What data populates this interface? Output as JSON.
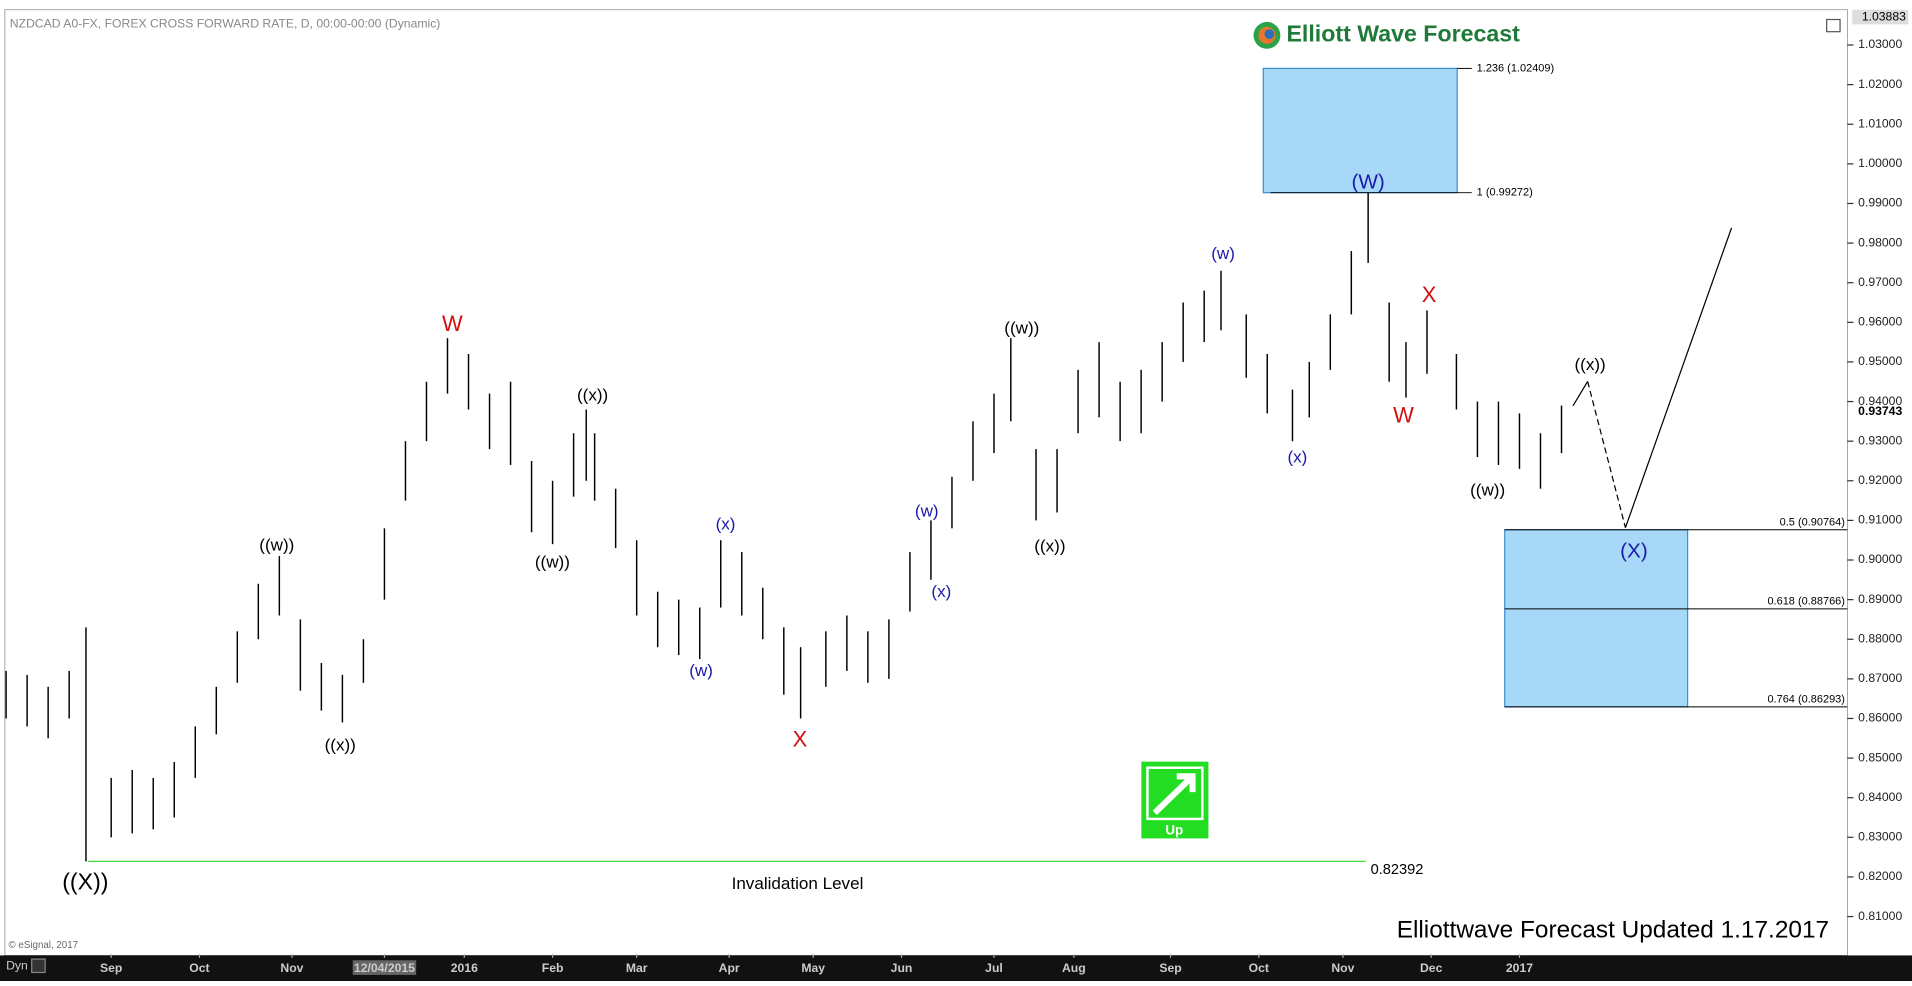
{
  "chart_data": {
    "type": "ohlc",
    "title": "NZDCAD A0-FX, FOREX CROSS FORWARD RATE, D, 00:00-00:00 (Dynamic)",
    "brand": "Elliott Wave Forecast",
    "footer": "Elliottwave Forecast Updated 1.17.2017",
    "copyright": "© eSignal, 2017",
    "mode": "Dyn",
    "signal": "Up",
    "color": "#000000",
    "x": [
      0,
      5,
      10,
      15,
      19,
      25,
      30,
      35,
      40,
      45,
      50,
      55,
      60,
      65,
      70,
      75,
      80,
      85,
      90,
      95,
      100,
      105,
      110,
      115,
      120,
      125,
      130,
      135,
      138,
      140,
      145,
      150,
      155,
      160,
      165,
      170,
      175,
      180,
      185,
      189,
      195,
      200,
      205,
      210,
      215,
      220,
      225,
      230,
      235,
      239,
      245,
      250,
      255,
      260,
      265,
      270,
      275,
      280,
      285,
      289,
      295,
      300,
      306,
      310,
      315,
      320,
      324,
      329,
      333,
      338,
      345,
      350,
      355,
      360,
      365,
      370
    ],
    "high": [
      0.872,
      0.871,
      0.868,
      0.872,
      0.883,
      0.845,
      0.847,
      0.845,
      0.849,
      0.858,
      0.868,
      0.882,
      0.894,
      0.901,
      0.885,
      0.874,
      0.871,
      0.88,
      0.908,
      0.93,
      0.945,
      0.956,
      0.952,
      0.942,
      0.945,
      0.925,
      0.92,
      0.932,
      0.938,
      0.932,
      0.918,
      0.905,
      0.892,
      0.89,
      0.888,
      0.905,
      0.902,
      0.893,
      0.883,
      0.878,
      0.882,
      0.886,
      0.882,
      0.885,
      0.902,
      0.91,
      0.921,
      0.935,
      0.942,
      0.956,
      0.928,
      0.928,
      0.948,
      0.955,
      0.945,
      0.948,
      0.955,
      0.965,
      0.968,
      0.973,
      0.962,
      0.952,
      0.943,
      0.95,
      0.962,
      0.978,
      0.9927,
      0.965,
      0.955,
      0.963,
      0.952,
      0.94,
      0.94,
      0.937,
      0.932,
      0.939
    ],
    "low": [
      0.86,
      0.858,
      0.855,
      0.86,
      0.82392,
      0.83,
      0.831,
      0.832,
      0.835,
      0.845,
      0.856,
      0.869,
      0.88,
      0.886,
      0.867,
      0.862,
      0.859,
      0.869,
      0.89,
      0.915,
      0.93,
      0.942,
      0.938,
      0.928,
      0.924,
      0.907,
      0.904,
      0.916,
      0.92,
      0.915,
      0.903,
      0.886,
      0.878,
      0.876,
      0.875,
      0.888,
      0.886,
      0.88,
      0.866,
      0.86,
      0.868,
      0.872,
      0.869,
      0.87,
      0.887,
      0.895,
      0.908,
      0.92,
      0.927,
      0.935,
      0.91,
      0.912,
      0.932,
      0.936,
      0.93,
      0.932,
      0.94,
      0.95,
      0.955,
      0.958,
      0.946,
      0.937,
      0.93,
      0.936,
      0.948,
      0.962,
      0.975,
      0.945,
      0.941,
      0.947,
      0.938,
      0.926,
      0.924,
      0.923,
      0.918,
      0.927
    ],
    "xlim": [
      0,
      438
    ],
    "xticks": [
      {
        "value": 25,
        "label": "Sep"
      },
      {
        "value": 46,
        "label": "Oct"
      },
      {
        "value": 68,
        "label": "Nov"
      },
      {
        "value": 90,
        "label": "12/04/2015"
      },
      {
        "value": 109,
        "label": "2016"
      },
      {
        "value": 130,
        "label": "Feb"
      },
      {
        "value": 150,
        "label": "Mar"
      },
      {
        "value": 172,
        "label": "Apr"
      },
      {
        "value": 192,
        "label": "May"
      },
      {
        "value": 213,
        "label": "Jun"
      },
      {
        "value": 235,
        "label": "Jul"
      },
      {
        "value": 254,
        "label": "Aug"
      },
      {
        "value": 277,
        "label": "Sep"
      },
      {
        "value": 298,
        "label": "Oct"
      },
      {
        "value": 318,
        "label": "Nov"
      },
      {
        "value": 339,
        "label": "Dec"
      },
      {
        "value": 360,
        "label": "2017"
      }
    ],
    "ylim": [
      0.8005,
      1.0389
    ],
    "yticks": [
      {
        "value": 0.81,
        "label": "0.81000"
      },
      {
        "value": 0.82,
        "label": "0.82000"
      },
      {
        "value": 0.83,
        "label": "0.83000"
      },
      {
        "value": 0.84,
        "label": "0.84000"
      },
      {
        "value": 0.85,
        "label": "0.85000"
      },
      {
        "value": 0.86,
        "label": "0.86000"
      },
      {
        "value": 0.87,
        "label": "0.87000"
      },
      {
        "value": 0.88,
        "label": "0.88000"
      },
      {
        "value": 0.89,
        "label": "0.89000"
      },
      {
        "value": 0.9,
        "label": "0.90000"
      },
      {
        "value": 0.91,
        "label": "0.91000"
      },
      {
        "value": 0.92,
        "label": "0.92000"
      },
      {
        "value": 0.93,
        "label": "0.93000"
      },
      {
        "value": 0.94,
        "label": "0.94000"
      },
      {
        "value": 0.95,
        "label": "0.95000"
      },
      {
        "value": 0.96,
        "label": "0.96000"
      },
      {
        "value": 0.97,
        "label": "0.97000"
      },
      {
        "value": 0.98,
        "label": "0.98000"
      },
      {
        "value": 0.99,
        "label": "0.99000"
      },
      {
        "value": 1.0,
        "label": "1.00000"
      },
      {
        "value": 1.01,
        "label": "1.01000"
      },
      {
        "value": 1.02,
        "label": "1.02000"
      },
      {
        "value": 1.03,
        "label": "1.03000"
      }
    ],
    "axis_high": 1.03883,
    "last_price": 0.93743,
    "fib_levels": [
      {
        "value": 1.02409,
        "label": "1.236 (1.02409)"
      },
      {
        "value": 0.99272,
        "label": "1 (0.99272)"
      },
      {
        "value": 0.90764,
        "label": "0.5 (0.90764)"
      },
      {
        "value": 0.88766,
        "label": "0.618 (0.88766)"
      },
      {
        "value": 0.86293,
        "label": "0.764 (0.86293)"
      }
    ],
    "invalidation": {
      "label": "Invalidation Level",
      "value": 0.82392
    },
    "wave_labels": [
      {
        "text": "((X))",
        "color": "#000000"
      },
      {
        "text": "((w))",
        "color": "#000000"
      },
      {
        "text": "((x))",
        "color": "#000000"
      },
      {
        "text": "W",
        "color": "#d01010"
      },
      {
        "text": "((w))",
        "color": "#000000"
      },
      {
        "text": "((x))",
        "color": "#000000"
      },
      {
        "text": "(w)",
        "color": "#1a1aa8"
      },
      {
        "text": "(x)",
        "color": "#1a1aa8"
      },
      {
        "text": "X",
        "color": "#d01010"
      },
      {
        "text": "(w)",
        "color": "#1a1aa8"
      },
      {
        "text": "(x)",
        "color": "#1a1aa8"
      },
      {
        "text": "((w))",
        "color": "#000000"
      },
      {
        "text": "((x))",
        "color": "#000000"
      },
      {
        "text": "(w)",
        "color": "#1a1aa8"
      },
      {
        "text": "(x)",
        "color": "#1a1aa8"
      },
      {
        "text": "(W)",
        "color": "#1a1aa8"
      },
      {
        "text": "X",
        "color": "#d01010"
      },
      {
        "text": "W",
        "color": "#d01010"
      },
      {
        "text": "((w))",
        "color": "#000000"
      },
      {
        "text": "((x))",
        "color": "#000000"
      },
      {
        "text": "(X)",
        "color": "#1a1aa8"
      }
    ]
  }
}
